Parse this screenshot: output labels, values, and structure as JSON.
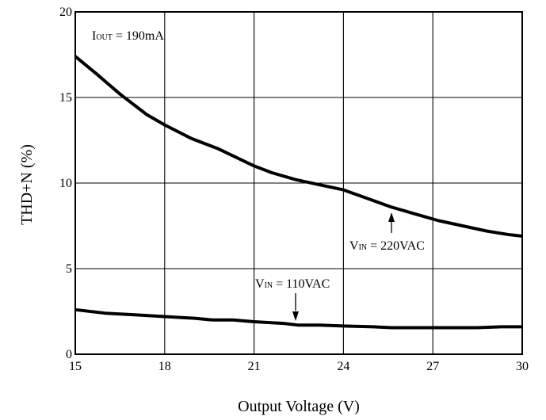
{
  "chart_data": {
    "type": "line",
    "xlabel": "Output Voltage (V)",
    "ylabel": "THD+N (%)",
    "xlim": [
      15,
      30
    ],
    "ylim": [
      0,
      20
    ],
    "xticks": [
      "15",
      "18",
      "21",
      "24",
      "27",
      "30"
    ],
    "yticks": [
      "0",
      "5",
      "10",
      "15",
      "20"
    ],
    "grid": true,
    "legend": "none",
    "series": [
      {
        "name": "VIN = 220VAC",
        "x": [
          15,
          15.7,
          16.5,
          17.4,
          18,
          18.9,
          19.8,
          20.4,
          21,
          21.6,
          22.4,
          23.2,
          24,
          24.8,
          25.6,
          26.4,
          27.2,
          28,
          28.8,
          29.5,
          30
        ],
        "y": [
          17.4,
          16.4,
          15.2,
          14.0,
          13.4,
          12.6,
          12.0,
          11.5,
          11.0,
          10.6,
          10.2,
          9.9,
          9.6,
          9.1,
          8.6,
          8.2,
          7.8,
          7.5,
          7.2,
          7.0,
          6.9
        ]
      },
      {
        "name": "VIN = 110VAC",
        "x": [
          15,
          16,
          17,
          18,
          19,
          19.6,
          20.3,
          21,
          22,
          22.5,
          23.2,
          24,
          25,
          25.6,
          26.5,
          27.5,
          28.5,
          29.3,
          30
        ],
        "y": [
          2.6,
          2.4,
          2.3,
          2.2,
          2.1,
          2.0,
          2.0,
          1.9,
          1.8,
          1.7,
          1.7,
          1.65,
          1.6,
          1.55,
          1.55,
          1.55,
          1.55,
          1.6,
          1.6
        ]
      }
    ],
    "annotations": {
      "iout": {
        "main": "I",
        "sub": "OUT",
        "rest": " = 190mA"
      },
      "vin220": {
        "main": "V",
        "sub": "IN",
        "rest": " = 220VAC"
      },
      "vin110": {
        "main": "V",
        "sub": "IN",
        "rest": " = 110VAC"
      }
    }
  }
}
